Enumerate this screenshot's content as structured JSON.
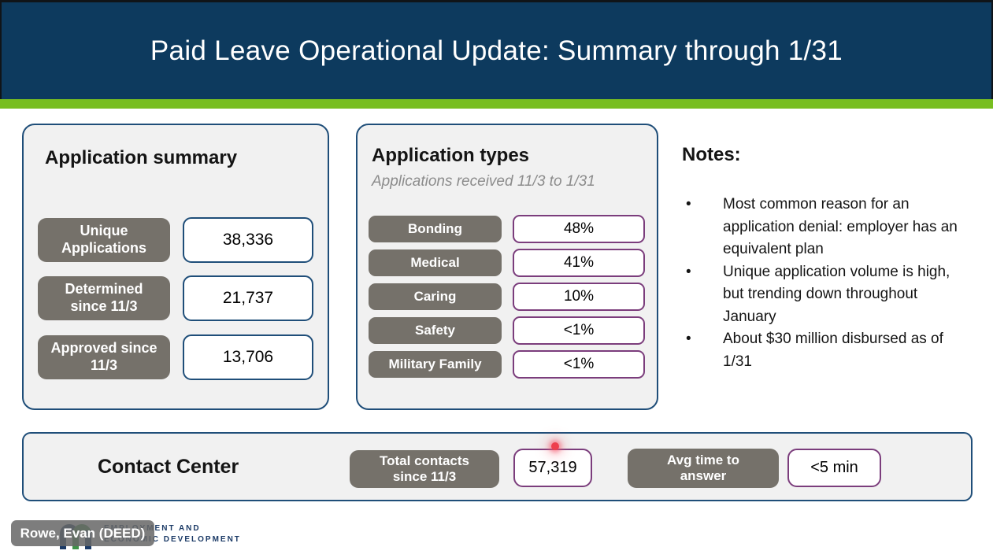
{
  "slide": {
    "title": "Paid Leave Operational Update: Summary through 1/31"
  },
  "application_summary": {
    "title": "Application summary",
    "rows": [
      {
        "label": "Unique Applications",
        "value": "38,336"
      },
      {
        "label": "Determined since 11/3",
        "value": "21,737"
      },
      {
        "label": "Approved since 11/3",
        "value": "13,706"
      }
    ]
  },
  "application_types": {
    "title": "Application types",
    "subtitle": "Applications received 11/3 to 1/31",
    "rows": [
      {
        "label": "Bonding",
        "value": "48%"
      },
      {
        "label": "Medical",
        "value": "41%"
      },
      {
        "label": "Caring",
        "value": "10%"
      },
      {
        "label": "Safety",
        "value": "<1%"
      },
      {
        "label": "Military Family",
        "value": "<1%"
      }
    ]
  },
  "notes": {
    "title": "Notes:",
    "bullets": [
      "Most common reason for an application denial: employer has an equivalent plan",
      "Unique application volume is high, but trending down throughout January",
      "About $30 million disbursed as of 1/31"
    ]
  },
  "contact_center": {
    "title": "Contact Center",
    "total_contacts_label": "Total contacts since 11/3",
    "total_contacts_value": "57,319",
    "avg_time_label": "Avg time to answer",
    "avg_time_value": "<5 min"
  },
  "presenter_badge": "Rowe, Evan (DEED)",
  "logo": {
    "line1": "EMPLOYMENT AND",
    "line2": "ECONOMIC DEVELOPMENT"
  },
  "colors": {
    "navy": "#0d3a5e",
    "panel-border": "#1f4e79",
    "green": "#78be20",
    "pill-gray": "#75716a",
    "purple": "#7b3d7c",
    "red-dot": "#ee3f4e",
    "logo-navy": "#1b3a66"
  }
}
